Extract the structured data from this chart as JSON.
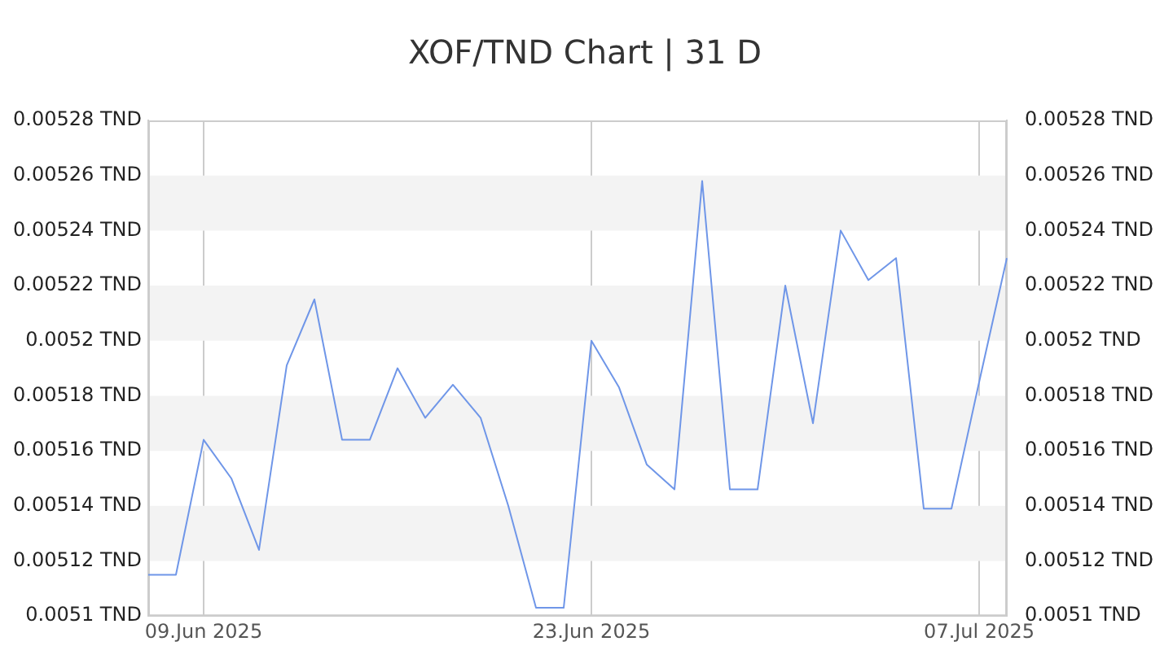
{
  "chart_data": {
    "type": "line",
    "title": "XOF/TND Chart | 31 D",
    "x": [
      "2025-06-07",
      "2025-06-08",
      "2025-06-09",
      "2025-06-10",
      "2025-06-11",
      "2025-06-12",
      "2025-06-13",
      "2025-06-14",
      "2025-06-15",
      "2025-06-16",
      "2025-06-17",
      "2025-06-18",
      "2025-06-19",
      "2025-06-20",
      "2025-06-21",
      "2025-06-22",
      "2025-06-23",
      "2025-06-24",
      "2025-06-25",
      "2025-06-26",
      "2025-06-27",
      "2025-06-28",
      "2025-06-29",
      "2025-06-30",
      "2025-07-01",
      "2025-07-02",
      "2025-07-03",
      "2025-07-04",
      "2025-07-05",
      "2025-07-06",
      "2025-07-07",
      "2025-07-08"
    ],
    "series": [
      {
        "color": "#6f96e8",
        "values": [
          0.005115,
          0.005115,
          0.005164,
          0.00515,
          0.005124,
          0.005191,
          0.005215,
          0.005164,
          0.005164,
          0.00519,
          0.005172,
          0.005184,
          0.005172,
          0.00514,
          0.005103,
          0.005103,
          0.0052,
          0.005183,
          0.005155,
          0.005146,
          0.005258,
          0.005146,
          0.005146,
          0.00522,
          0.00517,
          0.00524,
          0.005222,
          0.00523,
          0.005139,
          0.005139,
          0.005185,
          0.00523
        ]
      }
    ],
    "xlim": [
      "2025-06-07",
      "2025-07-08"
    ],
    "xticks": [
      {
        "value": "2025-06-09",
        "label": "09.Jun 2025"
      },
      {
        "value": "2025-06-23",
        "label": "23.Jun 2025"
      },
      {
        "value": "2025-07-07",
        "label": "07.Jul 2025"
      }
    ],
    "ylim": [
      0.0051,
      0.00528
    ],
    "yticks": [
      {
        "value": 0.0051,
        "label": "0.0051 TND"
      },
      {
        "value": 0.00512,
        "label": "0.00512 TND"
      },
      {
        "value": 0.00514,
        "label": "0.00514 TND"
      },
      {
        "value": 0.00516,
        "label": "0.00516 TND"
      },
      {
        "value": 0.00518,
        "label": "0.00518 TND"
      },
      {
        "value": 0.0052,
        "label": "0.0052 TND"
      },
      {
        "value": 0.00522,
        "label": "0.00522 TND"
      },
      {
        "value": 0.00524,
        "label": "0.00524 TND"
      },
      {
        "value": 0.00526,
        "label": "0.00526 TND"
      },
      {
        "value": 0.00528,
        "label": "0.00528 TND"
      }
    ],
    "y2lim": [
      0.0051,
      0.00528
    ],
    "y2ticks": [
      {
        "value": 0.0051,
        "label": "0.0051 TND"
      },
      {
        "value": 0.00512,
        "label": "0.00512 TND"
      },
      {
        "value": 0.00514,
        "label": "0.00514 TND"
      },
      {
        "value": 0.00516,
        "label": "0.00516 TND"
      },
      {
        "value": 0.00518,
        "label": "0.00518 TND"
      },
      {
        "value": 0.0052,
        "label": "0.0052 TND"
      },
      {
        "value": 0.00522,
        "label": "0.00522 TND"
      },
      {
        "value": 0.00524,
        "label": "0.00524 TND"
      },
      {
        "value": 0.00526,
        "label": "0.00526 TND"
      },
      {
        "value": 0.00528,
        "label": "0.00528 TND"
      }
    ],
    "bands": [
      {
        "axis": "y",
        "from": 0.00512,
        "to": 0.00514,
        "color": "#f3f3f3"
      },
      {
        "axis": "y",
        "from": 0.00516,
        "to": 0.00518,
        "color": "#f3f3f3"
      },
      {
        "axis": "y",
        "from": 0.0052,
        "to": 0.00522,
        "color": "#f3f3f3"
      },
      {
        "axis": "y",
        "from": 0.00524,
        "to": 0.00526,
        "color": "#f3f3f3"
      }
    ],
    "grid": "x",
    "legend": false,
    "marker": "none",
    "line_style": "solid"
  }
}
